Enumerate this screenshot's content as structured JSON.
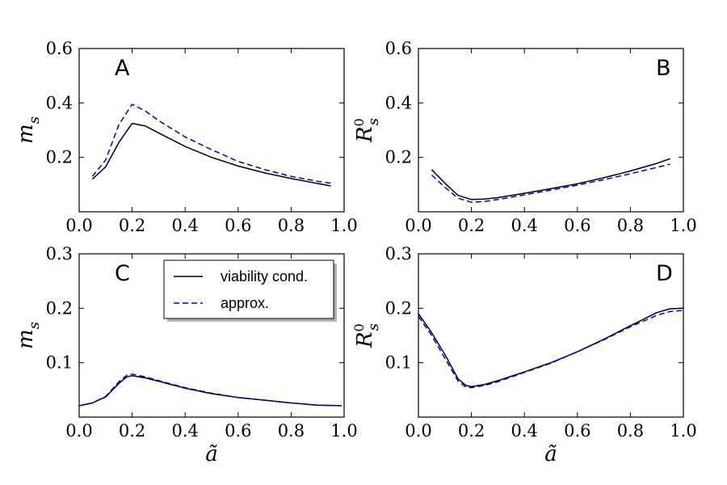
{
  "chart_data": [
    {
      "id": "A",
      "type": "line",
      "panel_label": "A",
      "xlabel": "ã",
      "ylabel": "m_s",
      "ylabel_main": "m",
      "ylabel_sub": "s",
      "ylabel_sup": "",
      "xlim": [
        0.0,
        1.0
      ],
      "ylim": [
        0.0,
        0.6
      ],
      "xticks": [
        0.0,
        0.2,
        0.4,
        0.6,
        0.8,
        1.0
      ],
      "xtick_labels": [
        "0.0",
        "0.2",
        "0.4",
        "0.6",
        "0.8",
        "1.0"
      ],
      "yticks": [
        0.2,
        0.4,
        0.6
      ],
      "ytick_labels": [
        "0.2",
        "0.4",
        "0.6"
      ],
      "series": [
        {
          "name": "viability cond.",
          "style": "solid",
          "color": "#000000",
          "x": [
            0.05,
            0.1,
            0.15,
            0.2,
            0.25,
            0.3,
            0.4,
            0.5,
            0.6,
            0.7,
            0.8,
            0.9,
            0.95
          ],
          "y": [
            0.12,
            0.165,
            0.255,
            0.325,
            0.315,
            0.29,
            0.24,
            0.2,
            0.168,
            0.143,
            0.122,
            0.104,
            0.095
          ]
        },
        {
          "name": "approx.",
          "style": "dashed",
          "color": "#0000cc",
          "x": [
            0.05,
            0.1,
            0.15,
            0.2,
            0.25,
            0.3,
            0.4,
            0.5,
            0.6,
            0.7,
            0.8,
            0.9,
            0.95
          ],
          "y": [
            0.13,
            0.19,
            0.32,
            0.395,
            0.37,
            0.335,
            0.275,
            0.228,
            0.185,
            0.155,
            0.13,
            0.112,
            0.105
          ]
        }
      ]
    },
    {
      "id": "B",
      "type": "line",
      "panel_label": "B",
      "xlabel": "ã",
      "ylabel": "R_s^0",
      "ylabel_main": "R",
      "ylabel_sub": "s",
      "ylabel_sup": "0",
      "xlim": [
        0.0,
        1.0
      ],
      "ylim": [
        0.0,
        0.6
      ],
      "xticks": [
        0.0,
        0.2,
        0.4,
        0.6,
        0.8,
        1.0
      ],
      "xtick_labels": [
        "0.0",
        "0.2",
        "0.4",
        "0.6",
        "0.8",
        "1.0"
      ],
      "yticks": [
        0.2,
        0.4,
        0.6
      ],
      "ytick_labels": [
        "0.2",
        "0.4",
        "0.6"
      ],
      "series": [
        {
          "name": "viability cond.",
          "style": "solid",
          "color": "#000000",
          "x": [
            0.05,
            0.1,
            0.15,
            0.2,
            0.25,
            0.3,
            0.4,
            0.5,
            0.6,
            0.7,
            0.8,
            0.9,
            0.95
          ],
          "y": [
            0.155,
            0.105,
            0.06,
            0.045,
            0.047,
            0.052,
            0.068,
            0.085,
            0.103,
            0.125,
            0.15,
            0.178,
            0.195
          ]
        },
        {
          "name": "approx.",
          "style": "dashed",
          "color": "#0000cc",
          "x": [
            0.05,
            0.1,
            0.15,
            0.2,
            0.25,
            0.3,
            0.4,
            0.5,
            0.6,
            0.7,
            0.8,
            0.9,
            0.95
          ],
          "y": [
            0.135,
            0.09,
            0.05,
            0.035,
            0.038,
            0.045,
            0.062,
            0.08,
            0.098,
            0.118,
            0.14,
            0.163,
            0.175
          ]
        }
      ]
    },
    {
      "id": "C",
      "type": "line",
      "panel_label": "C",
      "xlabel": "ã",
      "ylabel": "m_s",
      "ylabel_main": "m",
      "ylabel_sub": "s",
      "ylabel_sup": "",
      "xlim": [
        0.0,
        1.0
      ],
      "ylim": [
        0.0,
        0.3
      ],
      "xticks": [
        0.0,
        0.2,
        0.4,
        0.6,
        0.8,
        1.0
      ],
      "xtick_labels": [
        "0.0",
        "0.2",
        "0.4",
        "0.6",
        "0.8",
        "1.0"
      ],
      "yticks": [
        0.1,
        0.2,
        0.3
      ],
      "ytick_labels": [
        "0.1",
        "0.2",
        "0.3"
      ],
      "series": [
        {
          "name": "viability cond.",
          "style": "solid",
          "color": "#000000",
          "x": [
            0.0,
            0.05,
            0.1,
            0.15,
            0.18,
            0.2,
            0.25,
            0.3,
            0.4,
            0.5,
            0.6,
            0.7,
            0.8,
            0.9,
            0.99
          ],
          "y": [
            0.021,
            0.026,
            0.037,
            0.062,
            0.074,
            0.076,
            0.072,
            0.066,
            0.053,
            0.043,
            0.036,
            0.031,
            0.026,
            0.022,
            0.021
          ]
        },
        {
          "name": "approx.",
          "style": "dashed",
          "color": "#0000cc",
          "x": [
            0.0,
            0.05,
            0.1,
            0.15,
            0.18,
            0.2,
            0.25,
            0.3,
            0.4,
            0.5,
            0.6,
            0.7,
            0.8,
            0.9,
            0.99
          ],
          "y": [
            0.021,
            0.026,
            0.038,
            0.065,
            0.077,
            0.079,
            0.074,
            0.067,
            0.054,
            0.044,
            0.036,
            0.031,
            0.026,
            0.022,
            0.021
          ]
        }
      ]
    },
    {
      "id": "D",
      "type": "line",
      "panel_label": "D",
      "xlabel": "ã",
      "ylabel": "R_s^0",
      "ylabel_main": "R",
      "ylabel_sub": "s",
      "ylabel_sup": "0",
      "xlim": [
        0.0,
        1.0
      ],
      "ylim": [
        0.0,
        0.3
      ],
      "xticks": [
        0.0,
        0.2,
        0.4,
        0.6,
        0.8,
        1.0
      ],
      "xtick_labels": [
        "0.0",
        "0.2",
        "0.4",
        "0.6",
        "0.8",
        "1.0"
      ],
      "yticks": [
        0.1,
        0.2,
        0.3
      ],
      "ytick_labels": [
        "0.1",
        "0.2",
        "0.3"
      ],
      "series": [
        {
          "name": "viability cond.",
          "style": "solid",
          "color": "#000000",
          "x": [
            0.0,
            0.05,
            0.1,
            0.15,
            0.18,
            0.2,
            0.25,
            0.3,
            0.4,
            0.5,
            0.6,
            0.7,
            0.8,
            0.9,
            0.95,
            1.0
          ],
          "y": [
            0.19,
            0.155,
            0.115,
            0.07,
            0.058,
            0.056,
            0.06,
            0.067,
            0.083,
            0.1,
            0.12,
            0.143,
            0.168,
            0.192,
            0.199,
            0.2
          ]
        },
        {
          "name": "approx.",
          "style": "dashed",
          "color": "#0000cc",
          "x": [
            0.0,
            0.05,
            0.1,
            0.15,
            0.18,
            0.2,
            0.25,
            0.3,
            0.4,
            0.5,
            0.6,
            0.7,
            0.8,
            0.9,
            0.95,
            1.0
          ],
          "y": [
            0.185,
            0.15,
            0.108,
            0.066,
            0.055,
            0.054,
            0.058,
            0.065,
            0.082,
            0.099,
            0.12,
            0.142,
            0.166,
            0.187,
            0.194,
            0.196
          ]
        }
      ]
    }
  ],
  "legend": {
    "entries": [
      {
        "label": "viability cond.",
        "style": "solid",
        "color": "#000000"
      },
      {
        "label": "approx.",
        "style": "dashed",
        "color": "#0000cc"
      }
    ],
    "placement": "upper-right of panel C"
  }
}
